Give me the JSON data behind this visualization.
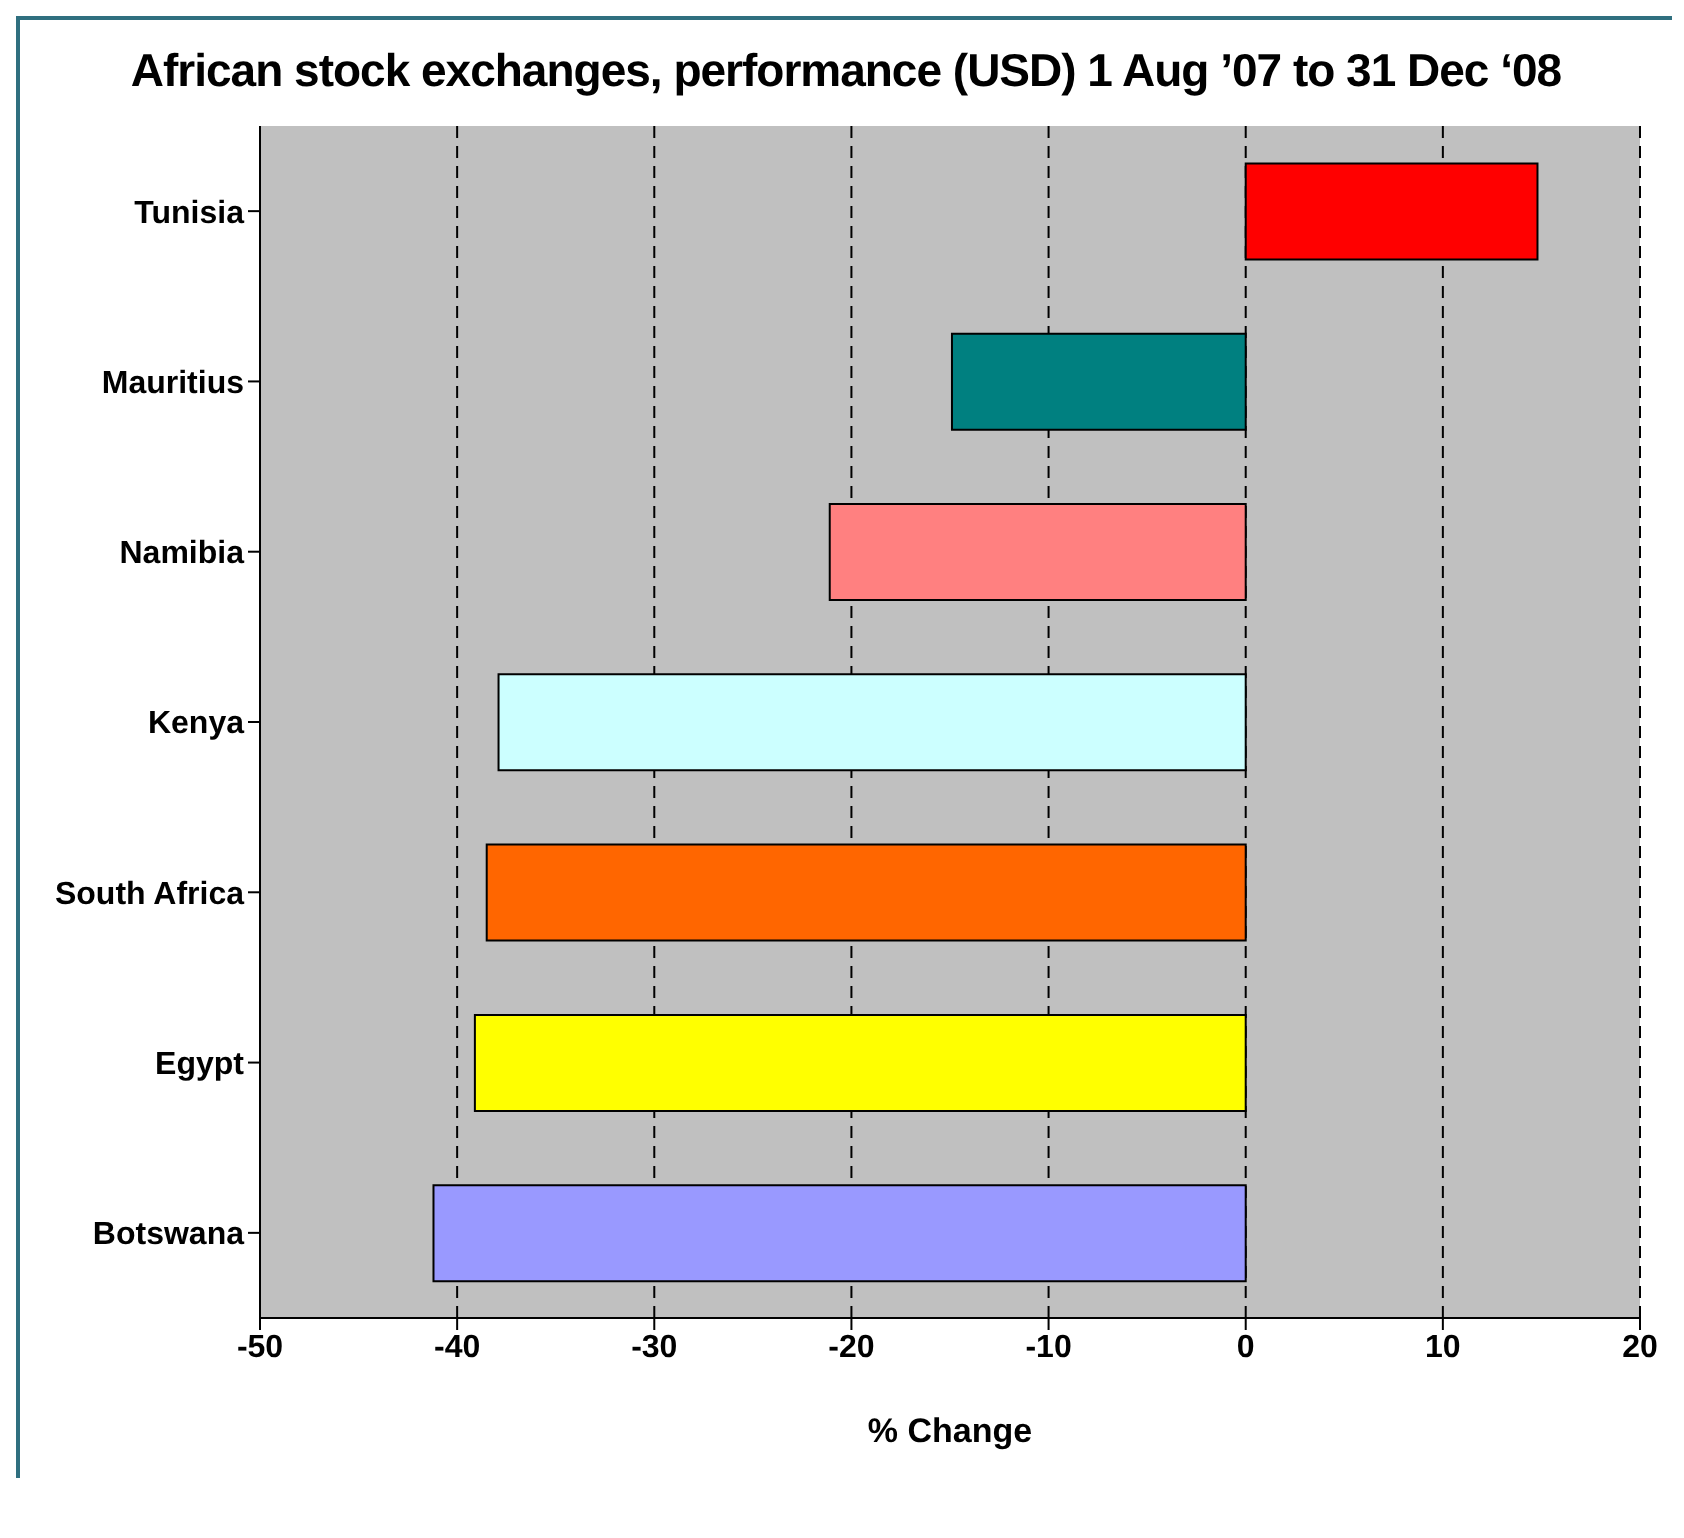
{
  "chart_data": {
    "type": "bar",
    "orientation": "horizontal",
    "title": "African stock exchanges, performance (USD) 1 Aug ’07 to 31 Dec ‘08",
    "xlabel": "% Change",
    "categories": [
      "Tunisia",
      "Mauritius",
      "Namibia",
      "Kenya",
      "South Africa",
      "Egypt",
      "Botswana"
    ],
    "values": [
      14.8,
      -14.9,
      -21.1,
      -37.9,
      -38.5,
      -39.1,
      -41.2
    ],
    "colors": [
      "#ff0000",
      "#008080",
      "#ff8080",
      "#ccffff",
      "#ff6600",
      "#ffff00",
      "#9999ff"
    ],
    "xlim": [
      -50,
      20
    ],
    "xticks": [
      -50,
      -40,
      -30,
      -20,
      -10,
      0,
      10,
      20
    ],
    "grid": "x"
  }
}
